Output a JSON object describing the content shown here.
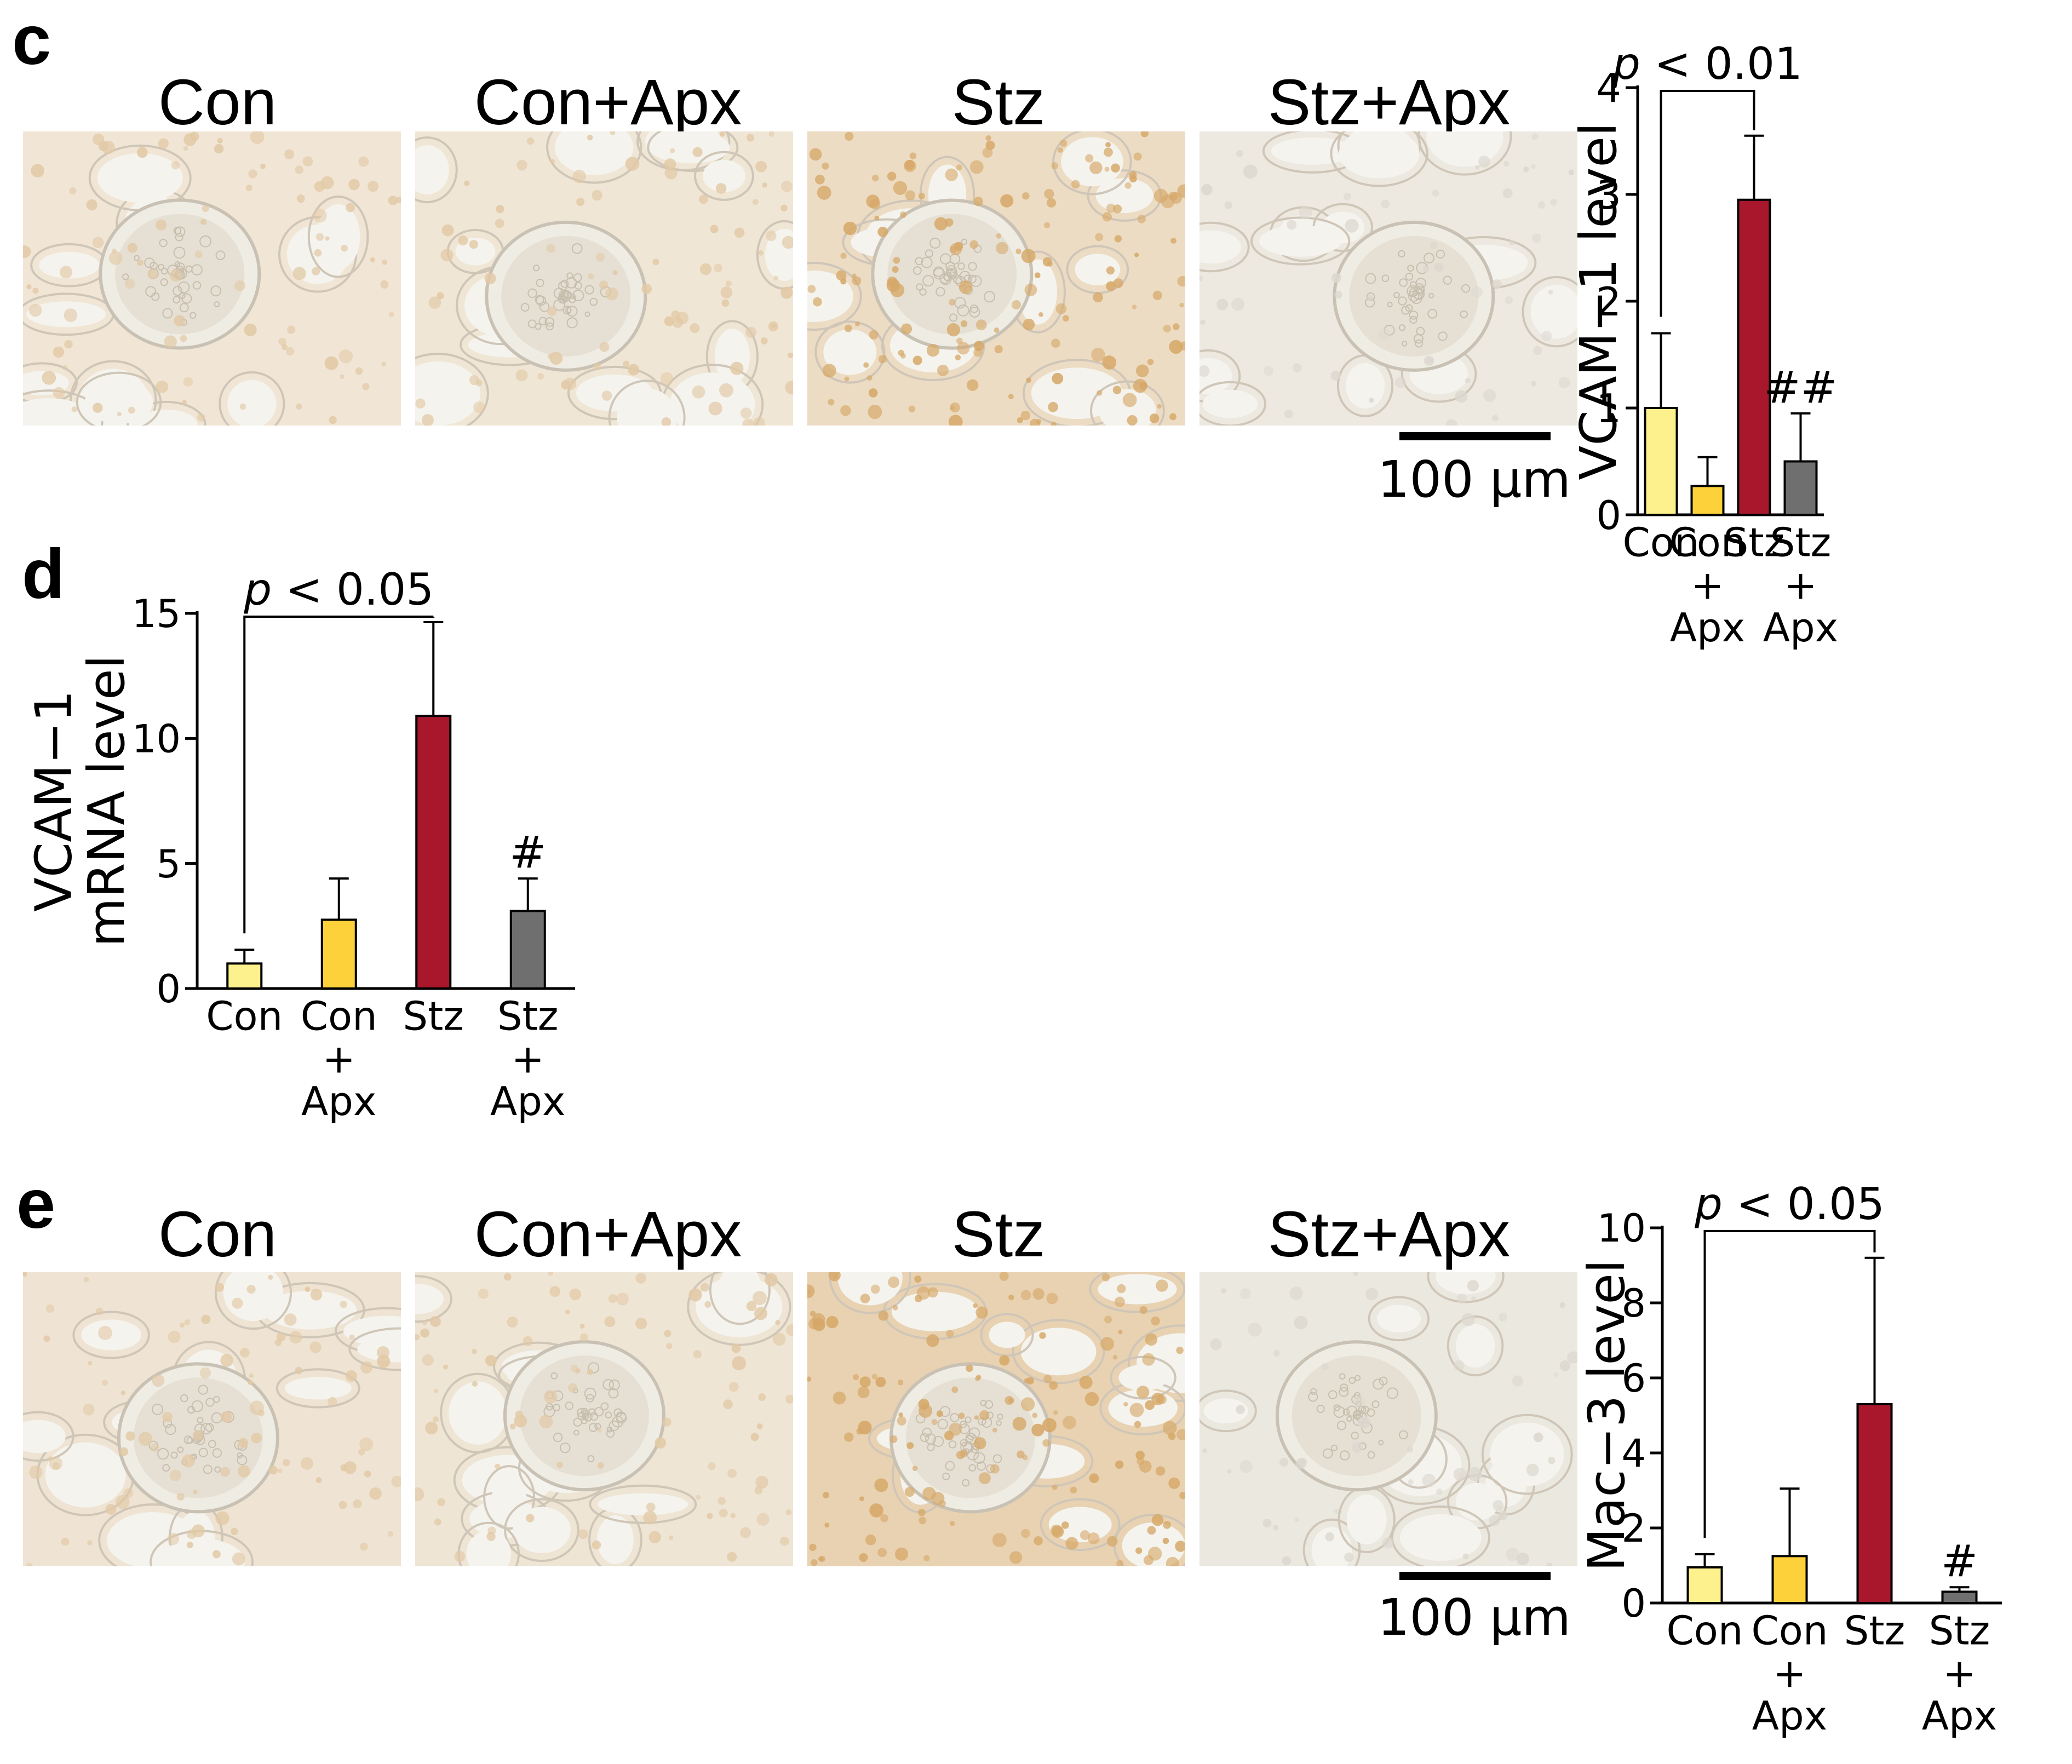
{
  "panels": [
    {
      "letter": "c",
      "images": [
        {
          "title": "Con",
          "stain": "faint",
          "tint": "#f1e6d6"
        },
        {
          "title": "Con+Apx",
          "stain": "faint",
          "tint": "#f0e6d5"
        },
        {
          "title": "Stz",
          "stain": "strong",
          "tint": "#eddcc4"
        },
        {
          "title": "Stz+Apx",
          "stain": "minimal",
          "tint": "#ede9e0"
        }
      ],
      "scale_label": "100 μm"
    },
    {
      "letter": "d",
      "images": [],
      "scale_label": ""
    },
    {
      "letter": "e",
      "images": [
        {
          "title": "Con",
          "stain": "faint",
          "tint": "#efe4d3"
        },
        {
          "title": "Con+Apx",
          "stain": "faint",
          "tint": "#efe5d5"
        },
        {
          "title": "Stz",
          "stain": "strong",
          "tint": "#e8d2b2"
        },
        {
          "title": "Stz+Apx",
          "stain": "minimal",
          "tint": "#ebe8e0"
        }
      ],
      "scale_label": "100 μm"
    }
  ],
  "colors": {
    "Con": "#fdf18e",
    "Con+Apx": "#fcd13a",
    "Stz": "#a8172c",
    "Stz+Apx": "#6f6f6f"
  },
  "chart_data": [
    {
      "panel": "c",
      "type": "bar",
      "categories": [
        "Con",
        "Con\n+\nApx",
        "Stz",
        "Stz\n+\nApx"
      ],
      "values": [
        1.0,
        0.27,
        2.95,
        0.5
      ],
      "errors": [
        0.7,
        0.27,
        0.6,
        0.45
      ],
      "ylabel": "VCAM−1 level",
      "ylim": [
        0,
        4
      ],
      "yticks": [
        0,
        1,
        2,
        3,
        4
      ],
      "significance": {
        "from": 0,
        "to": 2,
        "label_italic": "p",
        "label_rest": " < 0.01"
      },
      "bar_marks": [
        {
          "index": 3,
          "text": "##"
        }
      ]
    },
    {
      "panel": "d",
      "type": "bar",
      "categories": [
        "Con",
        "Con\n+\nApx",
        "Stz",
        "Stz\n+\nApx"
      ],
      "values": [
        1.0,
        2.75,
        10.9,
        3.1
      ],
      "errors": [
        0.55,
        1.65,
        3.75,
        1.3
      ],
      "ylabel": "VCAM−1\nmRNA level",
      "ylim": [
        0,
        15
      ],
      "yticks": [
        0,
        5,
        10,
        15
      ],
      "significance": {
        "from": 0,
        "to": 2,
        "label_italic": "p",
        "label_rest": " < 0.05"
      },
      "bar_marks": [
        {
          "index": 3,
          "text": "#"
        }
      ]
    },
    {
      "panel": "e",
      "type": "bar",
      "categories": [
        "Con",
        "Con\n+\nApx",
        "Stz",
        "Stz\n+\nApx"
      ],
      "values": [
        0.95,
        1.25,
        5.3,
        0.3
      ],
      "errors": [
        0.35,
        1.8,
        3.9,
        0.12
      ],
      "ylabel": "Mac−3 level",
      "ylim": [
        0,
        10
      ],
      "yticks": [
        0,
        2,
        4,
        6,
        8,
        10
      ],
      "significance": {
        "from": 0,
        "to": 2,
        "label_italic": "p",
        "label_rest": " < 0.05"
      },
      "bar_marks": [
        {
          "index": 3,
          "text": "#"
        }
      ]
    }
  ]
}
